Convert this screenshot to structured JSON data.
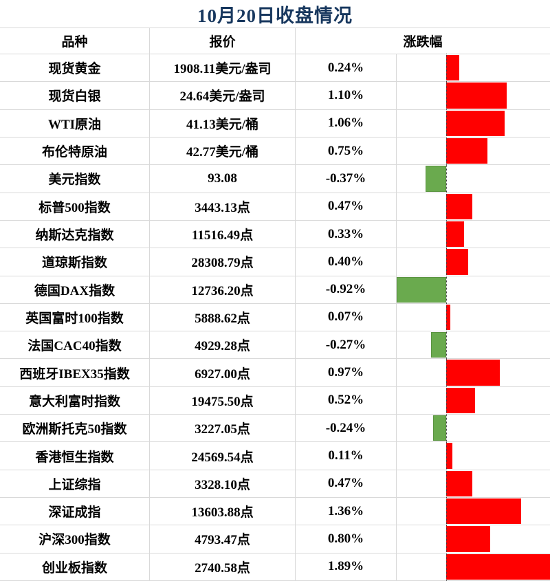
{
  "title": "10月20日收盘情况",
  "table": {
    "headers": {
      "instrument": "品种",
      "quote": "报价",
      "change": "涨跌幅"
    }
  },
  "chart_data": {
    "type": "bar",
    "orientation": "horizontal",
    "title": "10月20日收盘情况",
    "categories": [
      "现货黄金",
      "现货白银",
      "WTI原油",
      "布伦特原油",
      "美元指数",
      "标普500指数",
      "纳斯达克指数",
      "道琼斯指数",
      "德国DAX指数",
      "英国富时100指数",
      "法国CAC40指数",
      "西班牙IBEX35指数",
      "意大利富时指数",
      "欧洲斯托克50指数",
      "香港恒生指数",
      "上证综指",
      "深证成指",
      "沪深300指数",
      "创业板指数"
    ],
    "quotes": [
      "1908.11美元/盎司",
      "24.64美元/盎司",
      "41.13美元/桶",
      "42.77美元/桶",
      "93.08",
      "3443.13点",
      "11516.49点",
      "28308.79点",
      "12736.20点",
      "5888.62点",
      "4929.28点",
      "6927.00点",
      "19475.50点",
      "3227.05点",
      "24569.54点",
      "3328.10点",
      "13603.88点",
      "4793.47点",
      "2740.58点"
    ],
    "values": [
      0.24,
      1.1,
      1.06,
      0.75,
      -0.37,
      0.47,
      0.33,
      0.4,
      -0.92,
      0.07,
      -0.27,
      0.97,
      0.52,
      -0.24,
      0.11,
      0.47,
      1.36,
      0.8,
      1.89
    ],
    "value_labels": [
      "0.24%",
      "1.10%",
      "1.06%",
      "0.75%",
      "-0.37%",
      "0.47%",
      "0.33%",
      "0.40%",
      "-0.92%",
      "0.07%",
      "-0.27%",
      "0.97%",
      "0.52%",
      "-0.24%",
      "0.11%",
      "0.47%",
      "1.36%",
      "0.80%",
      "1.89%"
    ],
    "xlim": [
      -0.9,
      1.875
    ],
    "grid": false,
    "legend": "none",
    "zero_axis": "dotted",
    "colors": {
      "positive_bar": "#FF0000",
      "negative_bar": "#6AAA4E",
      "negative_bar_border": "#5A9440",
      "title_text": "#17375E",
      "grid_line": "#D9D9D9",
      "zero_line": "#404040"
    }
  }
}
